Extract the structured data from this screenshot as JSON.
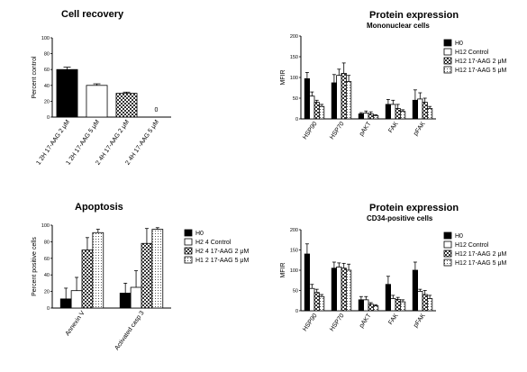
{
  "patterns": {
    "solid": "#000000",
    "white": "#ffffff",
    "checker_dark": "#333333",
    "checker_light": "#ffffff",
    "dots": "#555555"
  },
  "chart_data": [
    {
      "id": "cell-recovery",
      "type": "bar",
      "title": "Cell recovery",
      "subtitle": "",
      "ylabel": "Percent control",
      "xlabel": "",
      "ylim": [
        0,
        100
      ],
      "yticks": [
        0,
        20,
        40,
        60,
        80,
        100
      ],
      "grid": false,
      "legend": null,
      "categories": [
        "1 2H 17-AAG 2 μM",
        "1 2H 17-AAG 5 μM",
        "2 4H 17-AAG 2 μM",
        "2 4H 17-AAG 5 μM"
      ],
      "values": [
        60,
        40,
        30,
        0
      ],
      "errors": [
        3,
        2,
        1.5,
        0
      ],
      "fills": [
        "solid",
        "white",
        "checker",
        "white"
      ],
      "annotations": [
        {
          "category_index": 3,
          "text": "0"
        }
      ]
    },
    {
      "id": "protein-mononuclear",
      "type": "bar",
      "title": "Protein expression",
      "subtitle": "Mononuclear cells",
      "ylabel": "MFIR",
      "xlabel": "",
      "ylim": [
        0,
        200
      ],
      "yticks": [
        0,
        50,
        100,
        150,
        200
      ],
      "grid": false,
      "legend": "right",
      "categories": [
        "HSP90",
        "HSP70",
        "pAKT",
        "FAK",
        "pFAK"
      ],
      "series": [
        {
          "name": "H0",
          "fill": "solid",
          "values": [
            97,
            87,
            12,
            35,
            45
          ],
          "errors": [
            15,
            20,
            3,
            12,
            25
          ]
        },
        {
          "name": "H12 Control",
          "fill": "white",
          "values": [
            55,
            105,
            14,
            35,
            48
          ],
          "errors": [
            10,
            15,
            5,
            10,
            15
          ]
        },
        {
          "name": "H12 17-AAG 2 μM",
          "fill": "checker",
          "values": [
            40,
            110,
            12,
            25,
            40
          ],
          "errors": [
            5,
            25,
            5,
            10,
            10
          ]
        },
        {
          "name": "H12 17-AAG 5 μM",
          "fill": "dots",
          "values": [
            30,
            90,
            8,
            18,
            25
          ],
          "errors": [
            5,
            15,
            2,
            4,
            5
          ]
        }
      ]
    },
    {
      "id": "apoptosis",
      "type": "bar",
      "title": "Apoptosis",
      "subtitle": "",
      "ylabel": "Percent positive cells",
      "xlabel": "",
      "ylim": [
        0,
        100
      ],
      "yticks": [
        0,
        20,
        40,
        60,
        80,
        100
      ],
      "grid": false,
      "legend": "right",
      "categories": [
        "Annexin V",
        "Activated casp 3"
      ],
      "series": [
        {
          "name": "H0",
          "fill": "solid",
          "values": [
            11,
            18
          ],
          "errors": [
            13,
            12
          ]
        },
        {
          "name": "H2 4 Control",
          "fill": "white",
          "values": [
            21,
            25
          ],
          "errors": [
            16,
            20
          ]
        },
        {
          "name": "H2 4 17-AAG 2 μM",
          "fill": "checker",
          "values": [
            70,
            78
          ],
          "errors": [
            15,
            18
          ]
        },
        {
          "name": "H1 2 17-AAG 5 μM",
          "fill": "dots",
          "values": [
            91,
            95
          ],
          "errors": [
            4,
            2
          ]
        }
      ]
    },
    {
      "id": "protein-cd34",
      "type": "bar",
      "title": "Protein expression",
      "subtitle": "CD34-positive cells",
      "ylabel": "MFIR",
      "xlabel": "",
      "ylim": [
        0,
        200
      ],
      "yticks": [
        0,
        50,
        100,
        150,
        200
      ],
      "grid": false,
      "legend": "right",
      "categories": [
        "HSP90",
        "HSP70",
        "pAKT",
        "FAK",
        "pFAK"
      ],
      "series": [
        {
          "name": "H0",
          "fill": "solid",
          "values": [
            140,
            105,
            27,
            65,
            100
          ],
          "errors": [
            25,
            15,
            8,
            20,
            20
          ]
        },
        {
          "name": "H12 Control",
          "fill": "white",
          "values": [
            55,
            108,
            27,
            30,
            48
          ],
          "errors": [
            10,
            10,
            8,
            8,
            5
          ]
        },
        {
          "name": "H12 17-AAG 2 μM",
          "fill": "checker",
          "values": [
            45,
            105,
            16,
            28,
            40
          ],
          "errors": [
            8,
            12,
            4,
            5,
            10
          ]
        },
        {
          "name": "H12 17-AAG 5 μM",
          "fill": "dots",
          "values": [
            35,
            100,
            12,
            22,
            30
          ],
          "errors": [
            5,
            15,
            3,
            5,
            8
          ]
        }
      ]
    }
  ]
}
